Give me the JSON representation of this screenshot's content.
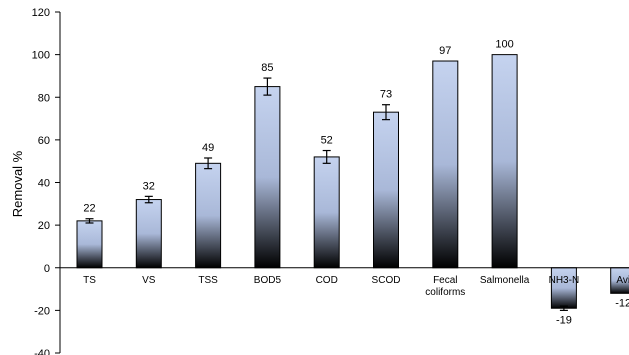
{
  "chart_data": {
    "type": "bar",
    "title": "",
    "xlabel": "",
    "ylabel": "Removal %",
    "ylim": [
      -40,
      120
    ],
    "yticks": [
      -40,
      -20,
      0,
      20,
      40,
      60,
      80,
      100,
      120
    ],
    "grid": false,
    "legend": "none",
    "categories": [
      {
        "lines": [
          "TS"
        ]
      },
      {
        "lines": [
          "VS"
        ]
      },
      {
        "lines": [
          "TSS"
        ]
      },
      {
        "lines": [
          "BOD5"
        ]
      },
      {
        "lines": [
          "COD"
        ]
      },
      {
        "lines": [
          "SCOD"
        ]
      },
      {
        "lines": [
          "Fecal",
          "coliforms"
        ]
      },
      {
        "lines": [
          "Salmonella"
        ]
      },
      {
        "lines": [
          "NH3-N"
        ]
      },
      {
        "lines": [
          "Avi"
        ]
      }
    ],
    "values": [
      22,
      32,
      49,
      85,
      52,
      73,
      97,
      100,
      -19,
      -12
    ],
    "data_labels": [
      "22",
      "32",
      "49",
      "85",
      "52",
      "73",
      "97",
      "100",
      "-19",
      "-12"
    ],
    "error": [
      1,
      1.5,
      2.5,
      4,
      3,
      3.5,
      0,
      0,
      1,
      0
    ],
    "bar_colors": {
      "top": "#c5d3ef",
      "mid": "#a9b8d8",
      "bottom": "#000000"
    }
  }
}
